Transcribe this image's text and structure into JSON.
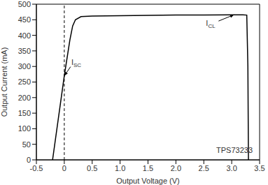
{
  "chart_data": {
    "type": "line",
    "x_label": "Output Voltage (V)",
    "y_label": "Output Current (mA)",
    "x": [
      -0.21,
      0,
      0.1,
      0.15,
      0.2,
      0.3,
      0.5,
      1.0,
      1.5,
      2.0,
      2.5,
      3.0,
      3.2,
      3.27,
      3.29,
      3.3
    ],
    "values": [
      0,
      270,
      385,
      430,
      450,
      460,
      462,
      463,
      464,
      465,
      465,
      466,
      466,
      465,
      300,
      0
    ],
    "color": "#000000",
    "xlim": [
      -0.5,
      3.5
    ],
    "xticks": [
      -0.5,
      0,
      0.5,
      {
        "value": 1,
        "label": "1.0"
      },
      1.5,
      {
        "value": 2,
        "label": "2.0"
      },
      2.5,
      {
        "value": 3,
        "label": "3.0"
      },
      3.5
    ],
    "ylim": [
      0,
      500
    ],
    "yticks": [
      0,
      50,
      100,
      150,
      200,
      250,
      300,
      350,
      400,
      450,
      500
    ],
    "grid": false,
    "reference_x": 0,
    "annotations": [
      {
        "text": "I",
        "subscript": "CL",
        "x": 3.04,
        "y": 466
      },
      {
        "text": "I",
        "subscript": "SC",
        "x": 0,
        "y": 270
      },
      {
        "text": "TPS73233"
      }
    ]
  }
}
